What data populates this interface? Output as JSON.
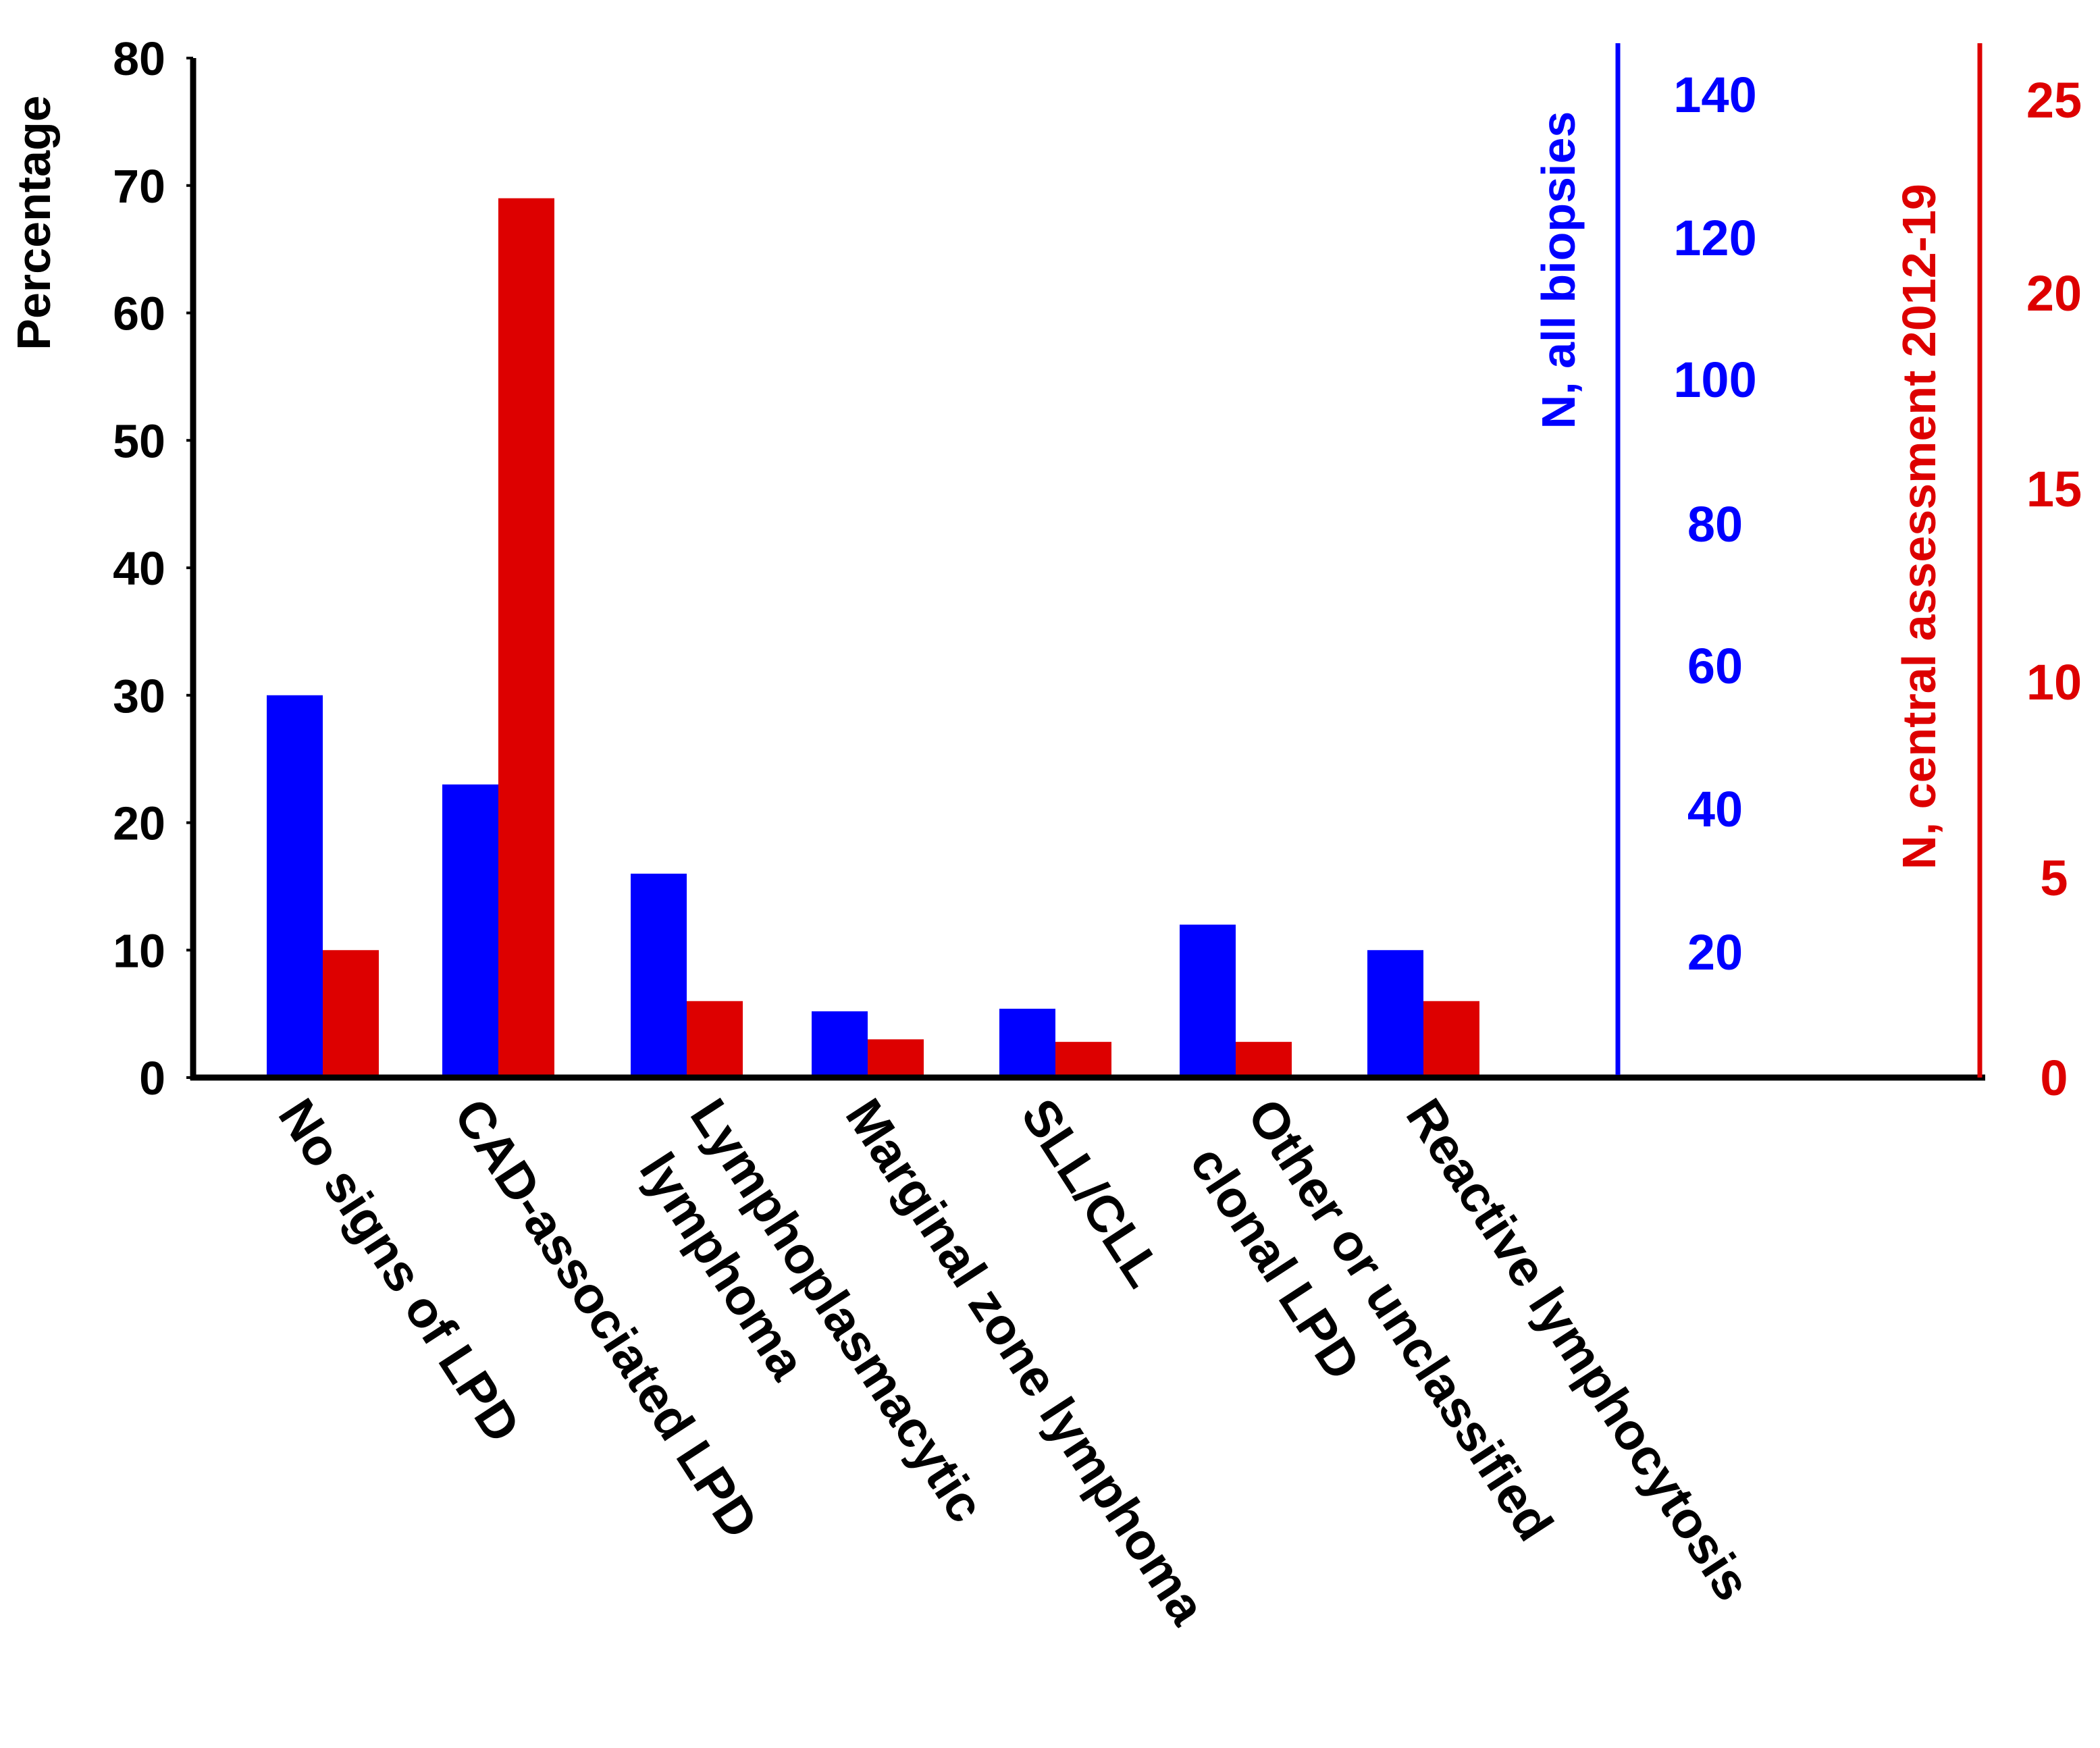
{
  "chart_data": {
    "type": "bar",
    "title": "",
    "categories": [
      [
        "No signs of LPD"
      ],
      [
        "CAD-associated LPD"
      ],
      [
        "Lymphoplasmacytic",
        "lymphoma"
      ],
      [
        "Marginal zone lymphoma"
      ],
      [
        "SLL/CLL"
      ],
      [
        "Other or unclassified",
        "clonal LPD"
      ],
      [
        "Reactive lymphocytosis"
      ]
    ],
    "series": [
      {
        "name": "N, all biopsies",
        "color": "#0000ff",
        "values": [
          30,
          23,
          16,
          5.2,
          5.4,
          12,
          10
        ]
      },
      {
        "name": "N, central assessment 2012-19",
        "color": "#dd0000",
        "values": [
          10,
          69,
          6,
          3,
          2.8,
          2.8,
          6
        ]
      }
    ],
    "ylabel": "Percentage",
    "ylim": [
      0,
      80
    ],
    "yticks": [
      "0",
      "10",
      "20",
      "30",
      "40",
      "50",
      "60",
      "70",
      "80"
    ],
    "y2": {
      "label": "N, all biopsies",
      "ticks": [
        "20",
        "40",
        "60",
        "80",
        "100",
        "120",
        "140"
      ],
      "color": "#0000ff"
    },
    "y3": {
      "label": "N, central assessment 2012-19",
      "ticks": [
        "0",
        "5",
        "10",
        "15",
        "20",
        "25"
      ],
      "color": "#dd0000"
    },
    "grid": false,
    "legend": "none"
  }
}
